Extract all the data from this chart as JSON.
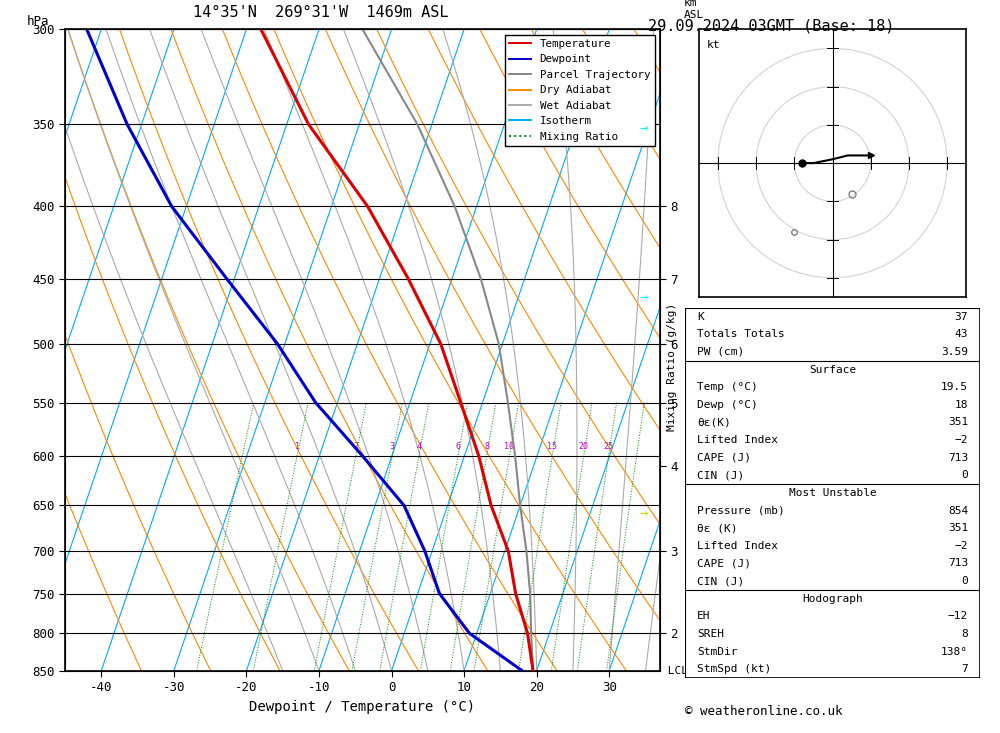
{
  "title_left": "14°35'N  269°31'W  1469m ASL",
  "title_right": "29.09.2024 03GMT (Base: 18)",
  "xlabel": "Dewpoint / Temperature (°C)",
  "copyright": "© weatheronline.co.uk",
  "pressure_levels": [
    300,
    350,
    400,
    450,
    500,
    550,
    600,
    650,
    700,
    750,
    800,
    850
  ],
  "temp_xlim": [
    -45,
    37
  ],
  "km_ticks": {
    "2": 800,
    "3": 700,
    "4": 610,
    "5": 550,
    "6": 500,
    "7": 450,
    "8": 400
  },
  "mixing_ratio_labels": [
    1,
    2,
    3,
    4,
    6,
    8,
    10,
    15,
    20,
    25
  ],
  "temperature_profile": {
    "pressure": [
      850,
      800,
      750,
      700,
      650,
      600,
      550,
      500,
      450,
      400,
      350,
      300
    ],
    "temp": [
      19.5,
      17.0,
      13.5,
      10.5,
      6.0,
      2.0,
      -3.0,
      -8.5,
      -16.0,
      -25.0,
      -37.0,
      -48.0
    ]
  },
  "dewpoint_profile": {
    "pressure": [
      850,
      800,
      750,
      700,
      650,
      600,
      550,
      500,
      450,
      400,
      350,
      300
    ],
    "dewp": [
      18.0,
      9.0,
      3.0,
      -1.0,
      -6.0,
      -14.0,
      -23.0,
      -31.0,
      -41.0,
      -52.0,
      -62.0,
      -72.0
    ]
  },
  "parcel_profile": {
    "pressure": [
      850,
      800,
      750,
      700,
      650,
      600,
      550,
      500,
      450,
      400,
      350,
      300
    ],
    "temp": [
      19.5,
      17.5,
      15.5,
      13.0,
      10.0,
      7.0,
      3.5,
      -0.5,
      -6.0,
      -13.0,
      -22.0,
      -34.0
    ]
  },
  "lcl_pressure": 850,
  "skew_factor": 30,
  "bg_color": "#ffffff",
  "isotherm_color": "#00aaff",
  "dry_adiabat_color": "#ff8800",
  "wet_adiabat_color": "#aaaaaa",
  "mixing_ratio_color": "#008800",
  "temp_color": "#dd0000",
  "dewp_color": "#0000cc",
  "parcel_color": "#888888",
  "legend_entries": [
    {
      "label": "Temperature",
      "color": "#dd0000",
      "style": "-"
    },
    {
      "label": "Dewpoint",
      "color": "#0000cc",
      "style": "-"
    },
    {
      "label": "Parcel Trajectory",
      "color": "#888888",
      "style": "-"
    },
    {
      "label": "Dry Adiabat",
      "color": "#ff8800",
      "style": "-"
    },
    {
      "label": "Wet Adiabat",
      "color": "#aaaaaa",
      "style": "-"
    },
    {
      "label": "Isotherm",
      "color": "#00aaff",
      "style": "-"
    },
    {
      "label": "Mixing Ratio",
      "color": "#008800",
      "style": ":"
    }
  ]
}
